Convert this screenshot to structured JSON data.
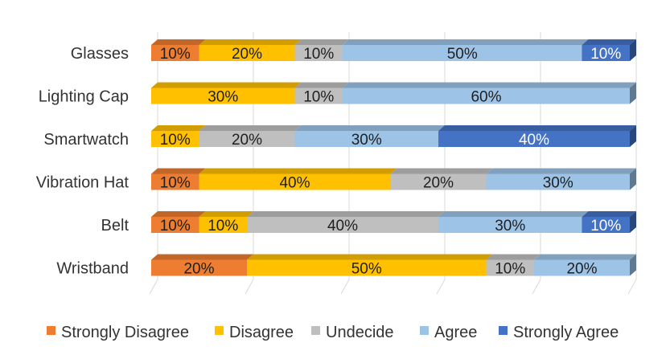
{
  "chart_data": {
    "type": "bar",
    "orientation": "horizontal",
    "stacked": "percent",
    "three_d": true,
    "categories": [
      "Glasses",
      "Lighting Cap",
      "Smartwatch",
      "Vibration Hat",
      "Belt",
      "Wristband"
    ],
    "series": [
      {
        "name": "Strongly Disagree",
        "color": "#ED7D31",
        "values": [
          10,
          0,
          0,
          10,
          10,
          20
        ]
      },
      {
        "name": "Disagree",
        "color": "#FFC000",
        "values": [
          20,
          30,
          10,
          40,
          10,
          50
        ]
      },
      {
        "name": "Undecide",
        "color": "#BFBFBF",
        "values": [
          10,
          10,
          20,
          20,
          40,
          10
        ]
      },
      {
        "name": "Agree",
        "color": "#9DC3E6",
        "values": [
          50,
          60,
          30,
          30,
          30,
          20
        ]
      },
      {
        "name": "Strongly Agree",
        "color": "#4472C4",
        "values": [
          10,
          0,
          40,
          0,
          10,
          0
        ]
      }
    ],
    "value_suffix": "%",
    "xlim": [
      0,
      100
    ],
    "grid": true,
    "legend_position": "bottom"
  }
}
